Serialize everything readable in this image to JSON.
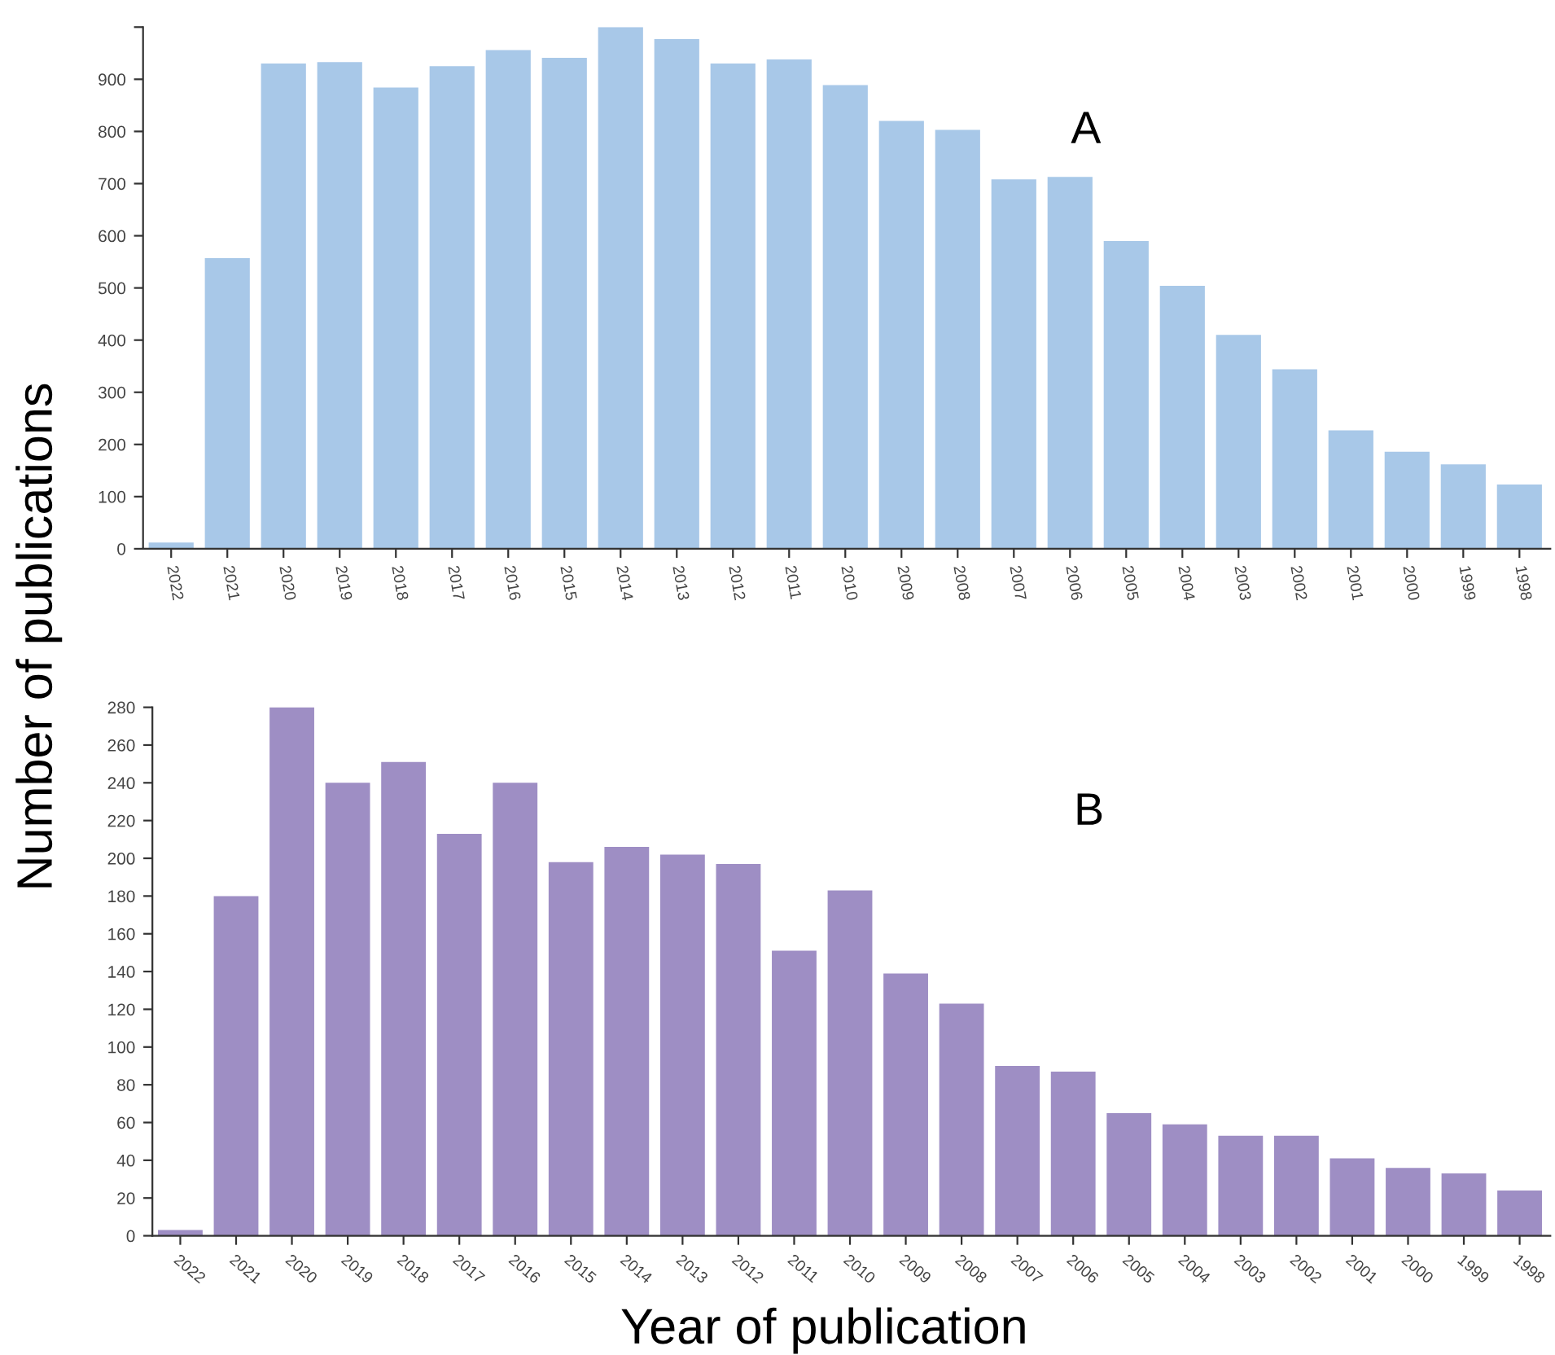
{
  "chart_data": [
    {
      "type": "bar",
      "title": "A",
      "ylabel": "Number of publications",
      "categories": [
        "2022",
        "2021",
        "2020",
        "2019",
        "2018",
        "2017",
        "2016",
        "2015",
        "2014",
        "2013",
        "2012",
        "2011",
        "2010",
        "2009",
        "2008",
        "2007",
        "2006",
        "2005",
        "2004",
        "2003",
        "2002",
        "2001",
        "2000",
        "1999",
        "1998"
      ],
      "values": [
        12,
        557,
        930,
        933,
        884,
        925,
        956,
        941,
        1000,
        977,
        930,
        938,
        889,
        820,
        803,
        708,
        713,
        590,
        504,
        410,
        344,
        227,
        186,
        162,
        123
      ],
      "color": "#a8c8e8",
      "ylim": [
        0,
        1000
      ],
      "yticks": [
        0,
        100,
        200,
        300,
        400,
        500,
        600,
        700,
        800,
        900,
        {
          "value": 1000,
          "label": null
        }
      ],
      "grid": false,
      "legend": false
    },
    {
      "type": "bar",
      "title": "B",
      "xlabel": "Year of publication",
      "categories": [
        "2022",
        "2021",
        "2020",
        "2019",
        "2018",
        "2017",
        "2016",
        "2015",
        "2014",
        "2013",
        "2012",
        "2011",
        "2010",
        "2009",
        "2008",
        "2007",
        "2006",
        "2005",
        "2004",
        "2003",
        "2002",
        "2001",
        "2000",
        "1999",
        "1998"
      ],
      "values": [
        3,
        180,
        280,
        240,
        251,
        213,
        240,
        198,
        206,
        202,
        197,
        151,
        183,
        139,
        123,
        90,
        87,
        65,
        59,
        53,
        53,
        41,
        36,
        33,
        24
      ],
      "color": "#9e8ec4",
      "ylim": [
        0,
        280
      ],
      "yticks": [
        0,
        20,
        40,
        60,
        80,
        100,
        120,
        140,
        160,
        180,
        200,
        220,
        240,
        260,
        280
      ],
      "grid": false,
      "legend": false
    }
  ]
}
